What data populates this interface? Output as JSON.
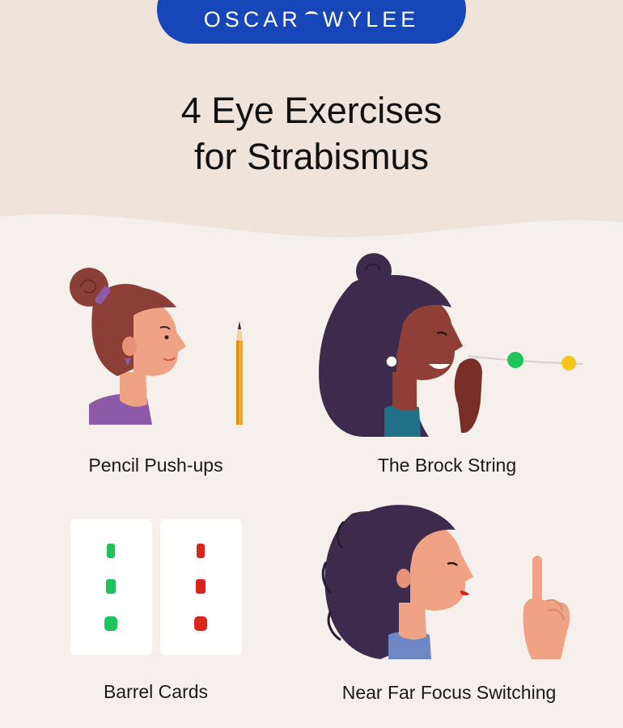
{
  "brand": {
    "logo_left": "OSCAR",
    "logo_right": "WYLEE",
    "color": "#1746b8"
  },
  "title": {
    "line1": "4 Eye Exercises",
    "line2": "for Strabismus"
  },
  "exercises": [
    {
      "label": "Pencil Push-ups"
    },
    {
      "label": "The Brock String"
    },
    {
      "label": "Barrel Cards"
    },
    {
      "label": "Near Far Focus Switching"
    }
  ],
  "colors": {
    "background": "#f6f0ec",
    "header_band": "#efe3da",
    "green_dot": "#1fc35b",
    "red_dot": "#d9261c",
    "yellow_bead": "#f5c518"
  }
}
